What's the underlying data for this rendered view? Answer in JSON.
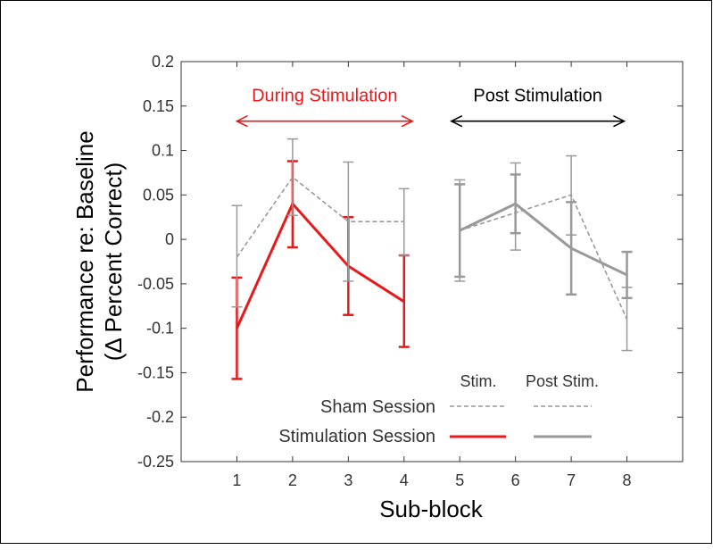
{
  "chart_data": {
    "type": "line",
    "xlabel": "Sub-block",
    "ylabel_line1": "Performance re: Baseline",
    "ylabel_line2": "(Δ Percent Correct)",
    "xlim": [
      0,
      9
    ],
    "ylim": [
      -0.25,
      0.2
    ],
    "xticks": [
      1,
      2,
      3,
      4,
      5,
      6,
      7,
      8
    ],
    "yticks": [
      0.2,
      0.15,
      0.1,
      0.05,
      0,
      -0.05,
      -0.1,
      -0.15,
      -0.2,
      -0.25
    ],
    "ytick_labels": [
      "0.2",
      "0.15",
      "0.1",
      "0.05",
      "0",
      "-0.05",
      "-0.1",
      "-0.15",
      "-0.2",
      "-0.25"
    ],
    "grid": false,
    "colors": {
      "stim": "#e8191b",
      "post": "#999999",
      "sham": "#999999",
      "black": "#000000"
    },
    "series": [
      {
        "x": [
          1,
          2,
          3,
          4
        ],
        "values": [
          -0.1,
          0.04,
          -0.03,
          -0.07
        ],
        "err_low": [
          -0.157,
          -0.009,
          -0.085,
          -0.121
        ],
        "err_high": [
          -0.043,
          0.088,
          0.025,
          -0.018
        ],
        "color": "stim",
        "dashed": false,
        "width": 3
      },
      {
        "x": [
          1,
          2,
          3,
          4
        ],
        "values": [
          -0.02,
          0.07,
          0.02,
          0.02
        ],
        "err_low": [
          -0.076,
          0.027,
          -0.047,
          -0.018
        ],
        "err_high": [
          0.038,
          0.113,
          0.087,
          0.057
        ],
        "color": "sham",
        "dashed": true,
        "width": 1.6
      },
      {
        "x": [
          5,
          6,
          7,
          8
        ],
        "values": [
          0.01,
          0.04,
          -0.01,
          -0.04
        ],
        "err_low": [
          -0.042,
          0.007,
          -0.062,
          -0.066
        ],
        "err_high": [
          0.062,
          0.073,
          0.042,
          -0.014
        ],
        "color": "post",
        "dashed": false,
        "width": 3
      },
      {
        "x": [
          5,
          6,
          7,
          8
        ],
        "values": [
          0.01,
          0.03,
          0.05,
          -0.09
        ],
        "err_low": [
          -0.047,
          -0.012,
          0.005,
          -0.125
        ],
        "err_high": [
          0.067,
          0.086,
          0.094,
          -0.054
        ],
        "color": "sham",
        "dashed": true,
        "width": 1.6
      }
    ],
    "annotations": {
      "during": {
        "label": "During Stimulation",
        "x_from": 1,
        "x_to": 4.15,
        "y": 0.133,
        "color": "stim"
      },
      "post": {
        "label": "Post Stimulation",
        "x_from": 4.85,
        "x_to": 7.95,
        "y": 0.133,
        "color": "black"
      }
    },
    "legend": {
      "col_stim": "Stim.",
      "col_post": "Post Stim.",
      "sham": "Sham Session",
      "stimulation": "Stimulation Session"
    }
  }
}
